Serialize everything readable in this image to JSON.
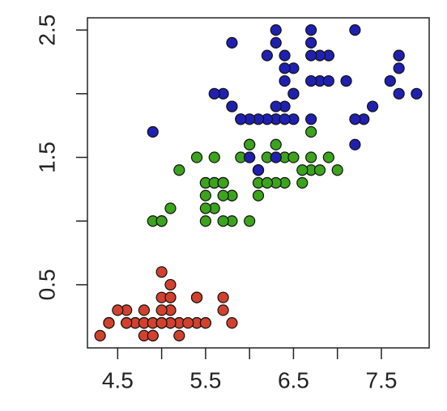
{
  "chart_data": {
    "type": "scatter",
    "xlim": [
      4.156,
      8.044
    ],
    "ylim": [
      0.004,
      2.596
    ],
    "xticks": [
      4.5,
      5.5,
      6.5,
      7.5
    ],
    "xminor_ticks": [
      5,
      6,
      7
    ],
    "yticks": [
      0.5,
      1.5,
      2.5
    ],
    "yminor_ticks": [
      1,
      2
    ],
    "series": [
      {
        "color": "#d2412e",
        "x": [
          5.1,
          4.9,
          4.7,
          4.6,
          5.0,
          5.4,
          4.6,
          5.0,
          4.4,
          4.9,
          5.4,
          4.8,
          4.8,
          4.3,
          5.8,
          5.7,
          5.4,
          5.1,
          5.7,
          5.1,
          5.4,
          5.1,
          4.6,
          5.1,
          4.8,
          5.0,
          5.0,
          5.2,
          5.2,
          4.7,
          4.8,
          5.4,
          5.2,
          5.5,
          4.9,
          5.0,
          5.5,
          4.9,
          4.4,
          5.1,
          5.0,
          4.5,
          4.4,
          5.0,
          5.1,
          4.8,
          5.1,
          4.6,
          5.3,
          5.0
        ],
        "y": [
          0.2,
          0.2,
          0.2,
          0.2,
          0.2,
          0.4,
          0.3,
          0.2,
          0.2,
          0.1,
          0.2,
          0.2,
          0.1,
          0.1,
          0.2,
          0.4,
          0.4,
          0.3,
          0.3,
          0.3,
          0.2,
          0.4,
          0.2,
          0.5,
          0.2,
          0.2,
          0.4,
          0.2,
          0.2,
          0.2,
          0.2,
          0.4,
          0.1,
          0.2,
          0.2,
          0.2,
          0.2,
          0.1,
          0.2,
          0.2,
          0.3,
          0.3,
          0.2,
          0.6,
          0.4,
          0.3,
          0.2,
          0.2,
          0.2,
          0.2
        ]
      },
      {
        "color": "#3ca41c",
        "x": [
          7.0,
          6.4,
          6.9,
          5.5,
          6.5,
          5.7,
          6.3,
          4.9,
          6.6,
          5.2,
          5.0,
          5.9,
          6.0,
          6.1,
          5.6,
          6.7,
          5.6,
          5.8,
          6.2,
          5.6,
          5.9,
          6.1,
          6.3,
          6.1,
          6.4,
          6.6,
          6.8,
          6.7,
          6.0,
          5.7,
          5.5,
          5.5,
          5.8,
          6.0,
          5.4,
          6.0,
          6.7,
          6.3,
          5.6,
          5.5,
          5.5,
          6.1,
          5.8,
          5.0,
          5.6,
          5.7,
          5.7,
          6.2,
          5.1,
          5.7
        ],
        "y": [
          1.4,
          1.5,
          1.5,
          1.3,
          1.5,
          1.3,
          1.6,
          1.0,
          1.3,
          1.4,
          1.0,
          1.5,
          1.0,
          1.4,
          1.3,
          1.4,
          1.5,
          1.0,
          1.5,
          1.1,
          1.8,
          1.3,
          1.5,
          1.2,
          1.3,
          1.4,
          1.4,
          1.7,
          1.5,
          1.0,
          1.1,
          1.0,
          1.2,
          1.6,
          1.5,
          1.6,
          1.5,
          1.3,
          1.3,
          1.3,
          1.2,
          1.4,
          1.2,
          1.0,
          1.3,
          1.2,
          1.3,
          1.3,
          1.1,
          1.3
        ]
      },
      {
        "color": "#2020b0",
        "x": [
          6.3,
          5.8,
          7.1,
          6.3,
          6.5,
          7.6,
          4.9,
          7.3,
          6.7,
          7.2,
          6.5,
          6.4,
          6.8,
          5.7,
          5.8,
          6.4,
          6.5,
          7.7,
          7.7,
          6.0,
          6.9,
          5.6,
          7.7,
          6.3,
          6.7,
          7.2,
          6.2,
          6.1,
          6.4,
          7.2,
          7.4,
          7.9,
          6.4,
          6.3,
          6.1,
          7.7,
          6.3,
          6.4,
          6.0,
          6.9,
          6.7,
          6.9,
          5.8,
          6.8,
          6.7,
          6.7,
          6.3,
          6.5,
          6.2,
          5.9
        ],
        "y": [
          2.5,
          1.9,
          2.1,
          1.8,
          2.2,
          2.1,
          1.7,
          1.8,
          1.8,
          2.5,
          2.0,
          1.9,
          2.1,
          2.0,
          2.4,
          2.3,
          1.8,
          2.2,
          2.3,
          1.5,
          2.3,
          2.0,
          2.0,
          1.8,
          2.1,
          1.8,
          1.8,
          1.8,
          2.1,
          1.6,
          1.9,
          2.0,
          2.2,
          1.5,
          1.4,
          2.3,
          2.4,
          1.8,
          1.8,
          2.1,
          2.4,
          2.3,
          1.9,
          2.3,
          2.5,
          2.3,
          1.9,
          2.0,
          2.3,
          1.8
        ]
      }
    ]
  }
}
